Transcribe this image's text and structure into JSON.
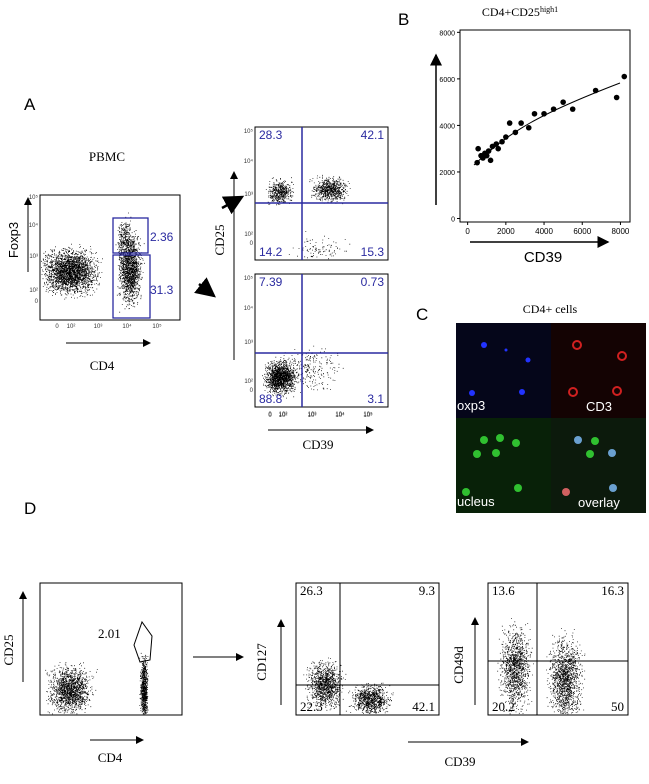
{
  "chart_data": {
    "type": "scatter",
    "title": "CD4+CD25",
    "title_sup": "high1",
    "x_label": "CD39",
    "color": "#000000",
    "x": [
      500,
      550,
      700,
      800,
      900,
      1000,
      1100,
      1200,
      1300,
      1500,
      1600,
      1800,
      2000,
      2200,
      2500,
      2800,
      3200,
      3500,
      4000,
      4500,
      5000,
      5500,
      6700,
      7800,
      8200
    ],
    "y": [
      2400,
      3000,
      2700,
      2600,
      2800,
      2700,
      2900,
      2500,
      3100,
      3200,
      3000,
      3300,
      3500,
      4100,
      3700,
      4100,
      3900,
      4500,
      4500,
      4700,
      5000,
      4700,
      5500,
      5200,
      6100
    ],
    "xlim": [
      -400,
      8500
    ],
    "ylim": [
      -150,
      8100
    ],
    "xticks": [
      0,
      2000,
      4000,
      6000,
      8000
    ],
    "yticks": [
      0,
      2000,
      4000,
      6000,
      8000
    ]
  },
  "figure": {
    "log_ticks": [
      "0",
      "10²",
      "10³",
      "10⁴",
      "10⁵"
    ],
    "panel_a": {
      "label": "A",
      "title": "PBMC",
      "y_label": "Foxp3",
      "x_label": "CD4",
      "gates": [
        2.36,
        31.3
      ],
      "top_quadrants": [
        28.3,
        42.1,
        14.2,
        15.3
      ],
      "bottom_quadrants": [
        7.39,
        0.73,
        88.8,
        3.1
      ],
      "quad_y_label": "CD25",
      "quad_x_label": "CD39"
    },
    "panel_b": {
      "label": "B"
    },
    "panel_c": {
      "label": "C",
      "title": "CD4+ cells",
      "tiles": [
        "oxp3",
        "CD3",
        "ucleus",
        "overlay"
      ]
    },
    "panel_d": {
      "label": "D",
      "y_label": "CD25",
      "x_label": "CD4",
      "gate": 2.01,
      "plot2_y_label": "CD127",
      "plot2_quadrants": [
        26.3,
        9.3,
        22.3,
        42.1
      ],
      "plot3_y_label": "CD49d",
      "plot3_quadrants": [
        13.6,
        16.3,
        20.2,
        50
      ],
      "x_label_shared": "CD39"
    }
  }
}
